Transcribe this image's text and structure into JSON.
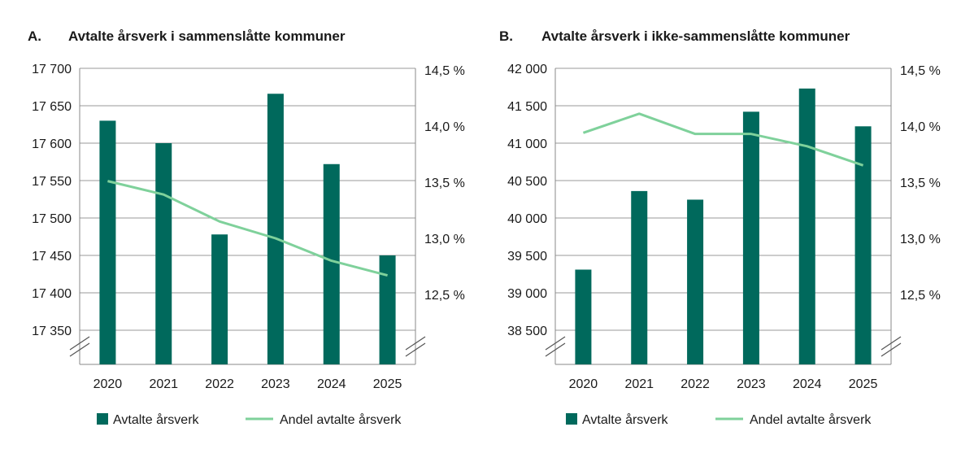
{
  "colors": {
    "bar": "#00695c",
    "line": "#7fd19b",
    "grid": "#999999",
    "axis": "#888888"
  },
  "chart_data": [
    {
      "type": "bar",
      "letter": "A.",
      "title": "Avtalte årsverk i sammenslåtte kommuner",
      "categories": [
        "2020",
        "2021",
        "2022",
        "2023",
        "2024",
        "2025"
      ],
      "y_ticks": [
        "17 700",
        "17 650",
        "17 600",
        "17 550",
        "17 500",
        "17 450",
        "17 400",
        "17 350"
      ],
      "y2_ticks": [
        "14,5 %",
        "14,0 %",
        "13,5 %",
        "13,0 %",
        "12,5 %"
      ],
      "ylim": [
        17325,
        17700
      ],
      "y2lim": [
        12.25,
        14.5
      ],
      "y_axis_break": true,
      "series": [
        {
          "name": "Avtalte årsverk",
          "type": "bar",
          "values": [
            17630,
            17600,
            17478,
            17666,
            17572,
            17450
          ]
        },
        {
          "name": "Andel avtalte årsverk",
          "type": "line",
          "axis": "right",
          "values": [
            13.51,
            13.39,
            13.15,
            13.0,
            12.8,
            12.67
          ]
        }
      ],
      "legend": [
        "Avtalte årsverk",
        "Andel avtalte årsverk"
      ],
      "grid": true,
      "legend_position": "bottom"
    },
    {
      "type": "bar",
      "letter": "B.",
      "title": "Avtalte årsverk i ikke-sammenslåtte kommuner",
      "categories": [
        "2020",
        "2021",
        "2022",
        "2023",
        "2024",
        "2025"
      ],
      "y_ticks": [
        "42 000",
        "41 500",
        "41 000",
        "40 500",
        "40 000",
        "39 500",
        "39 000",
        "38 500"
      ],
      "y2_ticks": [
        "14,5 %",
        "14,0 %",
        "13,5 %",
        "13,0 %",
        "12,5 %"
      ],
      "ylim": [
        38250,
        42000
      ],
      "y2lim": [
        12.25,
        14.5
      ],
      "y_axis_break": true,
      "series": [
        {
          "name": "Avtalte årsverk",
          "type": "bar",
          "values": [
            39310,
            40360,
            40245,
            41420,
            41730,
            41225
          ]
        },
        {
          "name": "Andel avtalte årsverk",
          "type": "line",
          "axis": "right",
          "values": [
            13.94,
            14.11,
            13.93,
            13.93,
            13.82,
            13.65
          ]
        }
      ],
      "legend": [
        "Avtalte årsverk",
        "Andel avtalte årsverk"
      ],
      "grid": true,
      "legend_position": "bottom"
    }
  ]
}
